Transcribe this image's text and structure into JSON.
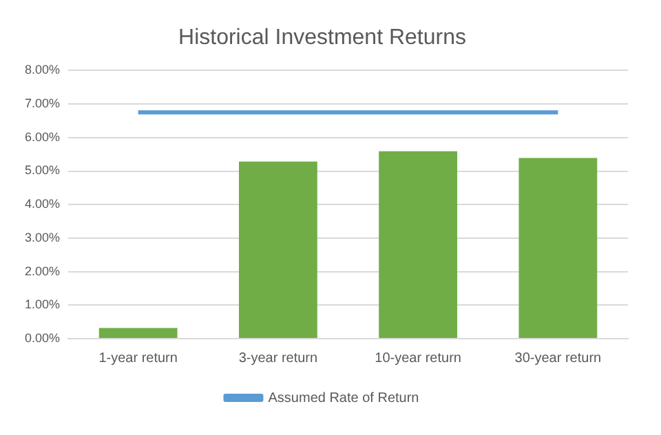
{
  "chart_data": {
    "type": "bar",
    "title": "Historical Investment Returns",
    "categories": [
      "1-year return",
      "3-year return",
      "10-year return",
      "30-year return"
    ],
    "series": [
      {
        "color": "#70ad47",
        "values": [
          0.32,
          5.28,
          5.59,
          5.39
        ]
      },
      {
        "type": "line",
        "name": "Assumed Rate of Return",
        "color": "#5b9bd5",
        "values": [
          6.75,
          6.75,
          6.75,
          6.75
        ]
      }
    ],
    "ylim": [
      0,
      8
    ],
    "yticks": [
      {
        "value": 0,
        "label": "0.00%"
      },
      {
        "value": 1,
        "label": "1.00%"
      },
      {
        "value": 2,
        "label": "2.00%"
      },
      {
        "value": 3,
        "label": "3.00%"
      },
      {
        "value": 4,
        "label": "4.00%"
      },
      {
        "value": 5,
        "label": "5.00%"
      },
      {
        "value": 6,
        "label": "6.00%"
      },
      {
        "value": 7,
        "label": "7.00%"
      },
      {
        "value": 8,
        "label": "8.00%"
      }
    ],
    "grid": "y",
    "legend": "bottom",
    "marker": "none"
  }
}
